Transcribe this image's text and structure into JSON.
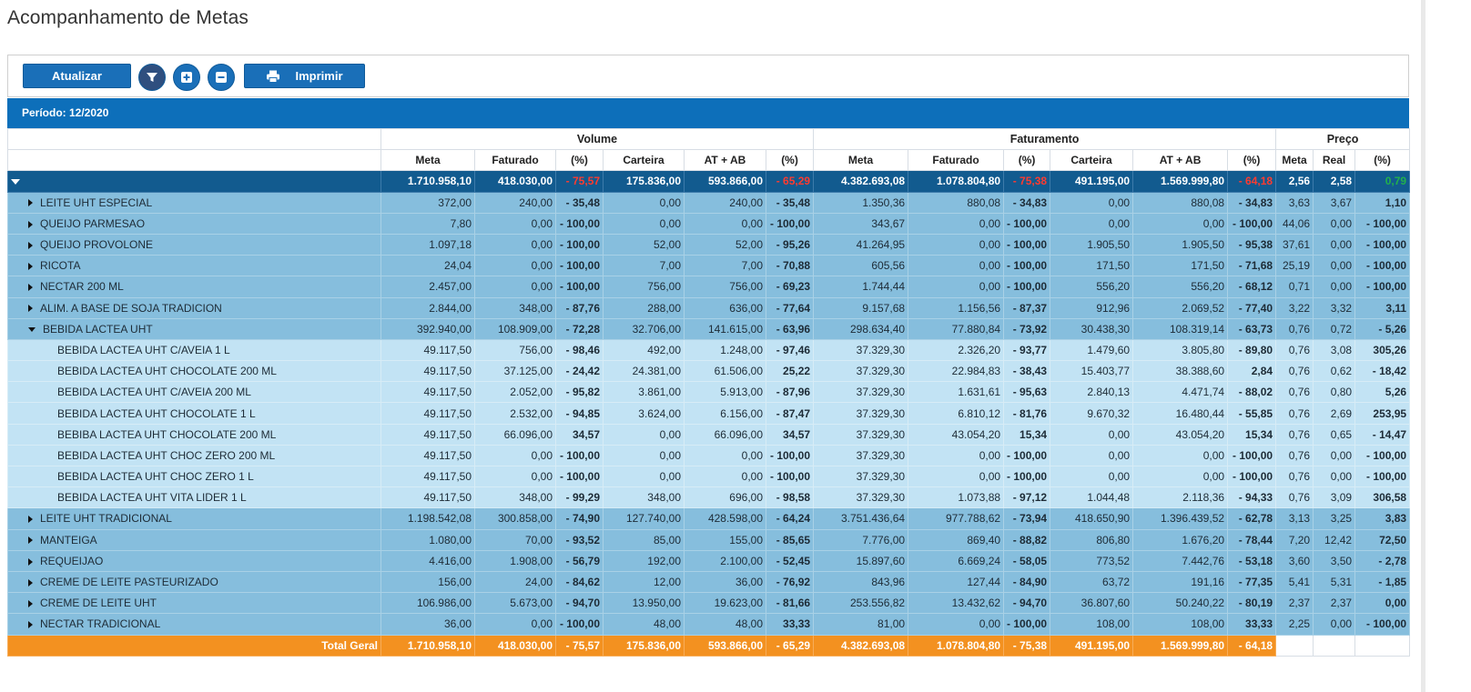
{
  "page": {
    "title": "Acompanhamento de Metas"
  },
  "toolbar": {
    "refresh_label": "Atualizar",
    "filter_icon": "filter-icon",
    "expand_icon": "plus-square-icon",
    "collapse_icon": "minus-square-icon",
    "print_icon": "printer-icon",
    "print_label": "Imprimir"
  },
  "periodo": {
    "label": "Período: 12/2020"
  },
  "table": {
    "groups": {
      "volume": "Volume",
      "faturamento": "Faturamento",
      "preco": "Preço"
    },
    "volume_cols": [
      "Meta",
      "Faturado",
      "(%)",
      "Carteira",
      "AT + AB",
      "(%)"
    ],
    "fat_cols": [
      "Meta",
      "Faturado",
      "(%)",
      "Carteira",
      "AT + AB",
      "(%)"
    ],
    "preco_cols": [
      "Meta",
      "Real",
      "(%)"
    ],
    "total_row": [
      "",
      "1.710.958,10",
      "418.030,00",
      "- 75,57",
      "175.836,00",
      "593.866,00",
      "- 65,29",
      "4.382.693,08",
      "1.078.804,80",
      "- 75,38",
      "491.195,00",
      "1.569.999,80",
      "- 64,18",
      "2,56",
      "2,58",
      "0,79"
    ],
    "rows": [
      {
        "level": 1,
        "state": "closed",
        "cells": [
          "LEITE UHT ESPECIAL",
          "372,00",
          "240,00",
          "- 35,48",
          "0,00",
          "240,00",
          "- 35,48",
          "1.350,36",
          "880,08",
          "- 34,83",
          "0,00",
          "880,08",
          "- 34,83",
          "3,63",
          "3,67",
          "1,10"
        ]
      },
      {
        "level": 1,
        "state": "closed",
        "cells": [
          "QUEIJO PARMESAO",
          "7,80",
          "0,00",
          "- 100,00",
          "0,00",
          "0,00",
          "- 100,00",
          "343,67",
          "0,00",
          "- 100,00",
          "0,00",
          "0,00",
          "- 100,00",
          "44,06",
          "0,00",
          "- 100,00"
        ]
      },
      {
        "level": 1,
        "state": "closed",
        "cells": [
          "QUEIJO PROVOLONE",
          "1.097,18",
          "0,00",
          "- 100,00",
          "52,00",
          "52,00",
          "- 95,26",
          "41.264,95",
          "0,00",
          "- 100,00",
          "1.905,50",
          "1.905,50",
          "- 95,38",
          "37,61",
          "0,00",
          "- 100,00"
        ]
      },
      {
        "level": 1,
        "state": "closed",
        "cells": [
          "RICOTA",
          "24,04",
          "0,00",
          "- 100,00",
          "7,00",
          "7,00",
          "- 70,88",
          "605,56",
          "0,00",
          "- 100,00",
          "171,50",
          "171,50",
          "- 71,68",
          "25,19",
          "0,00",
          "- 100,00"
        ]
      },
      {
        "level": 1,
        "state": "closed",
        "cells": [
          "NECTAR 200 ML",
          "2.457,00",
          "0,00",
          "- 100,00",
          "756,00",
          "756,00",
          "- 69,23",
          "1.744,44",
          "0,00",
          "- 100,00",
          "556,20",
          "556,20",
          "- 68,12",
          "0,71",
          "0,00",
          "- 100,00"
        ]
      },
      {
        "level": 1,
        "state": "closed",
        "cells": [
          "ALIM. A BASE DE SOJA TRADICION",
          "2.844,00",
          "348,00",
          "- 87,76",
          "288,00",
          "636,00",
          "- 77,64",
          "9.157,68",
          "1.156,56",
          "- 87,37",
          "912,96",
          "2.069,52",
          "- 77,40",
          "3,22",
          "3,32",
          "3,11"
        ]
      },
      {
        "level": 1,
        "state": "open",
        "cells": [
          "BEBIDA LACTEA UHT",
          "392.940,00",
          "108.909,00",
          "- 72,28",
          "32.706,00",
          "141.615,00",
          "- 63,96",
          "298.634,40",
          "77.880,84",
          "- 73,92",
          "30.438,30",
          "108.319,14",
          "- 63,73",
          "0,76",
          "0,72",
          "- 5,26"
        ]
      },
      {
        "level": 2,
        "cells": [
          "BEBIDA LACTEA UHT C/AVEIA 1 L",
          "49.117,50",
          "756,00",
          "- 98,46",
          "492,00",
          "1.248,00",
          "- 97,46",
          "37.329,30",
          "2.326,20",
          "- 93,77",
          "1.479,60",
          "3.805,80",
          "- 89,80",
          "0,76",
          "3,08",
          "305,26"
        ]
      },
      {
        "level": 2,
        "cells": [
          "BEBIDA LACTEA UHT CHOCOLATE 200 ML",
          "49.117,50",
          "37.125,00",
          "- 24,42",
          "24.381,00",
          "61.506,00",
          "25,22",
          "37.329,30",
          "22.984,83",
          "- 38,43",
          "15.403,77",
          "38.388,60",
          "2,84",
          "0,76",
          "0,62",
          "- 18,42"
        ]
      },
      {
        "level": 2,
        "cells": [
          "BEBIDA LACTEA UHT C/AVEIA 200 ML",
          "49.117,50",
          "2.052,00",
          "- 95,82",
          "3.861,00",
          "5.913,00",
          "- 87,96",
          "37.329,30",
          "1.631,61",
          "- 95,63",
          "2.840,13",
          "4.471,74",
          "- 88,02",
          "0,76",
          "0,80",
          "5,26"
        ]
      },
      {
        "level": 2,
        "cells": [
          "BEBIDA LACTEA UHT CHOCOLATE 1 L",
          "49.117,50",
          "2.532,00",
          "- 94,85",
          "3.624,00",
          "6.156,00",
          "- 87,47",
          "37.329,30",
          "6.810,12",
          "- 81,76",
          "9.670,32",
          "16.480,44",
          "- 55,85",
          "0,76",
          "2,69",
          "253,95"
        ]
      },
      {
        "level": 2,
        "cells": [
          "BEBIBA LACTEA UHT CHOCOLATE 200 ML",
          "49.117,50",
          "66.096,00",
          "34,57",
          "0,00",
          "66.096,00",
          "34,57",
          "37.329,30",
          "43.054,20",
          "15,34",
          "0,00",
          "43.054,20",
          "15,34",
          "0,76",
          "0,65",
          "- 14,47"
        ]
      },
      {
        "level": 2,
        "cells": [
          "BEBIDA LACTEA UHT CHOC ZERO 200 ML",
          "49.117,50",
          "0,00",
          "- 100,00",
          "0,00",
          "0,00",
          "- 100,00",
          "37.329,30",
          "0,00",
          "- 100,00",
          "0,00",
          "0,00",
          "- 100,00",
          "0,76",
          "0,00",
          "- 100,00"
        ]
      },
      {
        "level": 2,
        "cells": [
          "BEBIDA LACTEA UHT CHOC ZERO 1 L",
          "49.117,50",
          "0,00",
          "- 100,00",
          "0,00",
          "0,00",
          "- 100,00",
          "37.329,30",
          "0,00",
          "- 100,00",
          "0,00",
          "0,00",
          "- 100,00",
          "0,76",
          "0,00",
          "- 100,00"
        ]
      },
      {
        "level": 2,
        "cells": [
          "BEBIDA LACTEA UHT VITA LIDER 1 L",
          "49.117,50",
          "348,00",
          "- 99,29",
          "348,00",
          "696,00",
          "- 98,58",
          "37.329,30",
          "1.073,88",
          "- 97,12",
          "1.044,48",
          "2.118,36",
          "- 94,33",
          "0,76",
          "3,09",
          "306,58"
        ]
      },
      {
        "level": 1,
        "state": "closed",
        "cells": [
          "LEITE UHT TRADICIONAL",
          "1.198.542,08",
          "300.858,00",
          "- 74,90",
          "127.740,00",
          "428.598,00",
          "- 64,24",
          "3.751.436,64",
          "977.788,62",
          "- 73,94",
          "418.650,90",
          "1.396.439,52",
          "- 62,78",
          "3,13",
          "3,25",
          "3,83"
        ]
      },
      {
        "level": 1,
        "state": "closed",
        "cells": [
          "MANTEIGA",
          "1.080,00",
          "70,00",
          "- 93,52",
          "85,00",
          "155,00",
          "- 85,65",
          "7.776,00",
          "869,40",
          "- 88,82",
          "806,80",
          "1.676,20",
          "- 78,44",
          "7,20",
          "12,42",
          "72,50"
        ]
      },
      {
        "level": 1,
        "state": "closed",
        "cells": [
          "REQUEIJAO",
          "4.416,00",
          "1.908,00",
          "- 56,79",
          "192,00",
          "2.100,00",
          "- 52,45",
          "15.897,60",
          "6.669,24",
          "- 58,05",
          "773,52",
          "7.442,76",
          "- 53,18",
          "3,60",
          "3,50",
          "- 2,78"
        ]
      },
      {
        "level": 1,
        "state": "closed",
        "cells": [
          "CREME DE LEITE PASTEURIZADO",
          "156,00",
          "24,00",
          "- 84,62",
          "12,00",
          "36,00",
          "- 76,92",
          "843,96",
          "127,44",
          "- 84,90",
          "63,72",
          "191,16",
          "- 77,35",
          "5,41",
          "5,31",
          "- 1,85"
        ]
      },
      {
        "level": 1,
        "state": "closed",
        "cells": [
          "CREME DE LEITE UHT",
          "106.986,00",
          "5.673,00",
          "- 94,70",
          "13.950,00",
          "19.623,00",
          "- 81,66",
          "253.556,82",
          "13.432,62",
          "- 94,70",
          "36.807,60",
          "50.240,22",
          "- 80,19",
          "2,37",
          "2,37",
          "0,00"
        ]
      },
      {
        "level": 1,
        "state": "closed",
        "cells": [
          "NECTAR TRADICIONAL",
          "36,00",
          "0,00",
          "- 100,00",
          "48,00",
          "48,00",
          "33,33",
          "81,00",
          "0,00",
          "- 100,00",
          "108,00",
          "108,00",
          "33,33",
          "2,25",
          "0,00",
          "- 100,00"
        ]
      }
    ],
    "grand_total": [
      "Total Geral",
      "1.710.958,10",
      "418.030,00",
      "- 75,57",
      "175.836,00",
      "593.866,00",
      "- 65,29",
      "4.382.693,08",
      "1.078.804,80",
      "- 75,38",
      "491.195,00",
      "1.569.999,80",
      "- 64,18",
      "",
      "",
      ""
    ]
  },
  "colors": {
    "header_blue": "#0d6fba",
    "total_blue": "#125b8f",
    "level1_bg": "#86bedd",
    "level2_bg": "#c2e3f4",
    "grand_total_orange": "#f39120",
    "negative_red": "#e8141d",
    "positive_green": "#0b8a17"
  }
}
